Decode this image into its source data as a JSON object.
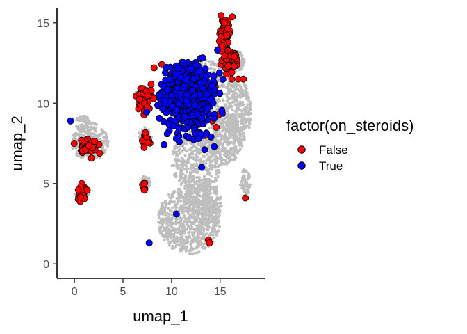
{
  "chart_data": {
    "type": "scatter",
    "xlabel": "umap_1",
    "ylabel": "umap_2",
    "xlim": [
      -1.8,
      19.6
    ],
    "ylim": [
      -0.9,
      15.9
    ],
    "x_ticks": [
      0,
      5,
      10,
      15
    ],
    "y_ticks": [
      0,
      5,
      10,
      15
    ],
    "grid": false,
    "legend": {
      "title": "factor(on_steroids)",
      "placement": "right",
      "entries": [
        {
          "label": "False",
          "color": "#ff0000"
        },
        {
          "label": "True",
          "color": "#0000ff"
        }
      ]
    },
    "background_points": {
      "color": "#bebebe",
      "regions": [
        {
          "cx": 11.8,
          "cy": 2.7,
          "rx": 3.2,
          "ry": 2.1,
          "n": 700
        },
        {
          "cx": 13.2,
          "cy": 3.8,
          "rx": 2.0,
          "ry": 1.5,
          "n": 260
        },
        {
          "cx": 12.6,
          "cy": 6.4,
          "rx": 2.6,
          "ry": 1.9,
          "n": 430
        },
        {
          "cx": 15.6,
          "cy": 7.8,
          "rx": 1.8,
          "ry": 1.6,
          "n": 320
        },
        {
          "cx": 16.9,
          "cy": 9.5,
          "rx": 1.3,
          "ry": 2.0,
          "n": 260
        },
        {
          "cx": 17.6,
          "cy": 5.0,
          "rx": 0.5,
          "ry": 0.9,
          "n": 60
        },
        {
          "cx": 13.0,
          "cy": 10.8,
          "rx": 3.6,
          "ry": 1.9,
          "n": 420
        },
        {
          "cx": 16.4,
          "cy": 12.6,
          "rx": 1.1,
          "ry": 0.7,
          "n": 110
        },
        {
          "cx": 1.6,
          "cy": 7.6,
          "rx": 1.9,
          "ry": 1.2,
          "n": 220
        },
        {
          "cx": 0.9,
          "cy": 8.7,
          "rx": 0.9,
          "ry": 0.5,
          "n": 60
        },
        {
          "cx": 0.8,
          "cy": 4.4,
          "rx": 0.7,
          "ry": 0.6,
          "n": 60
        },
        {
          "cx": 7.3,
          "cy": 7.9,
          "rx": 0.7,
          "ry": 0.6,
          "n": 50
        },
        {
          "cx": 7.3,
          "cy": 5.0,
          "rx": 0.5,
          "ry": 0.5,
          "n": 35
        },
        {
          "cx": 7.0,
          "cy": 10.4,
          "rx": 0.8,
          "ry": 0.7,
          "n": 60
        }
      ]
    },
    "series": [
      {
        "name": "False",
        "color": "#ff0000",
        "clusters": [
          {
            "cx": 15.5,
            "cy": 14.4,
            "rx": 0.55,
            "ry": 0.85,
            "n": 70
          },
          {
            "cx": 16.0,
            "cy": 12.7,
            "rx": 0.9,
            "ry": 0.65,
            "n": 65
          },
          {
            "cx": 7.2,
            "cy": 10.3,
            "rx": 0.75,
            "ry": 0.75,
            "n": 75
          },
          {
            "cx": 1.4,
            "cy": 7.3,
            "rx": 1.3,
            "ry": 0.45,
            "n": 60
          },
          {
            "cx": 0.8,
            "cy": 4.3,
            "rx": 0.5,
            "ry": 0.6,
            "n": 22
          },
          {
            "cx": 7.4,
            "cy": 7.7,
            "rx": 0.5,
            "ry": 0.45,
            "n": 14
          },
          {
            "cx": 7.2,
            "cy": 4.9,
            "rx": 0.3,
            "ry": 0.35,
            "n": 9
          }
        ],
        "points": [
          [
            17.6,
            4.1
          ],
          [
            13.8,
            1.5
          ],
          [
            13.9,
            1.3
          ],
          [
            16.9,
            11.5
          ],
          [
            17.4,
            11.5
          ],
          [
            16.2,
            11.5
          ],
          [
            14.5,
            11.0
          ],
          [
            14.9,
            9.3
          ],
          [
            14.2,
            8.9
          ],
          [
            14.6,
            8.5
          ],
          [
            13.5,
            8.0
          ],
          [
            9.0,
            12.4
          ],
          [
            8.2,
            12.2
          ],
          [
            11.1,
            12.3
          ],
          [
            16.2,
            11.9
          ]
        ]
      },
      {
        "name": "True",
        "color": "#0000ff",
        "clusters": [
          {
            "cx": 11.6,
            "cy": 10.3,
            "rx": 2.6,
            "ry": 1.9,
            "n": 560
          },
          {
            "cx": 11.2,
            "cy": 11.7,
            "rx": 1.4,
            "ry": 0.7,
            "n": 90
          }
        ],
        "points": [
          [
            -0.4,
            8.9
          ],
          [
            10.5,
            3.1
          ],
          [
            7.7,
            1.3
          ],
          [
            13.1,
            6.0
          ],
          [
            13.4,
            7.1
          ],
          [
            14.4,
            7.3
          ],
          [
            12.5,
            8.1
          ],
          [
            10.8,
            7.6
          ],
          [
            12.8,
            7.8
          ],
          [
            11.7,
            8.5
          ]
        ]
      }
    ]
  }
}
